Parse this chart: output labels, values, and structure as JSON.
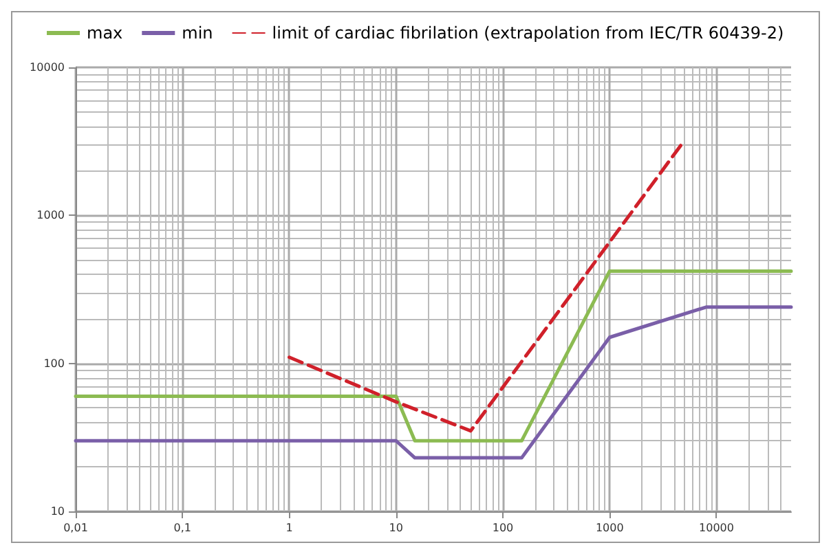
{
  "chart_data": {
    "type": "line",
    "log": "xy",
    "grid": true,
    "legend": "top left",
    "marker": "none",
    "xlim": [
      0.01,
      50000
    ],
    "ylim": [
      10,
      10000
    ],
    "xticks": [
      {
        "value": 0.01,
        "label": "0,01"
      },
      {
        "value": 0.1,
        "label": "0,1"
      },
      1,
      10,
      100,
      1000,
      10000
    ],
    "yticks": [
      10,
      100,
      1000,
      10000
    ],
    "series": [
      {
        "name": "max",
        "color": "#8cbb52",
        "line_style": "solid",
        "x": [
          0.01,
          10,
          15,
          150,
          1000,
          50000
        ],
        "values": [
          60,
          60,
          30,
          30,
          420,
          420
        ]
      },
      {
        "name": "min",
        "color": "#7a5fa8",
        "line_style": "solid",
        "x": [
          0.01,
          10,
          15,
          150,
          1000,
          8000,
          50000
        ],
        "values": [
          30,
          30,
          23,
          23,
          150,
          240,
          240
        ]
      },
      {
        "name": "limit of cardiac fibrilation (extrapolation from IEC/TR 60439-2)",
        "color": "#d0202a",
        "line_style": "dashed",
        "x": [
          1,
          10,
          50,
          5000
        ],
        "values": [
          110,
          55,
          35,
          3200
        ]
      }
    ]
  }
}
